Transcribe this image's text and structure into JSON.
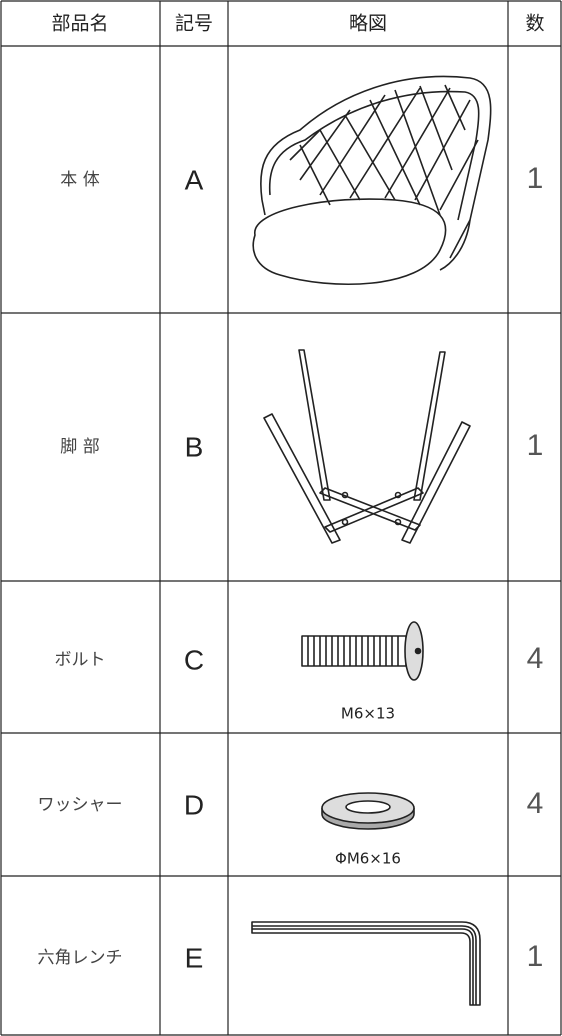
{
  "table": {
    "header": [
      "部品名",
      "記号",
      "略図",
      "数"
    ],
    "rows": [
      {
        "name": "本 体",
        "symbol": "A",
        "quantity": 1
      },
      {
        "name": "脚 部",
        "symbol": "B",
        "quantity": 1
      },
      {
        "name": "ボルト",
        "symbol": "C",
        "caption": "M6×13",
        "quantity": 4
      },
      {
        "name": "ワッシャー",
        "symbol": "D",
        "caption": "ΦM6×16",
        "quantity": 4
      },
      {
        "name": "六角レンチ",
        "symbol": "E",
        "quantity": 1
      }
    ]
  }
}
